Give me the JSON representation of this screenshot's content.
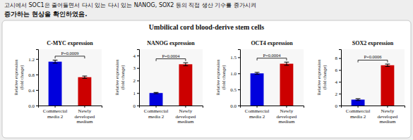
{
  "title": "Umbilical cord blood-derive stem cells",
  "annotations": [
    "고시에서 SOC1은 줄어들면서 다시 있는 다시 있는 NANOG, SOX2 등의 직접 생산 기수를 증가시켜",
    "증가하는 현상을 확인하였음."
  ],
  "chart_data": [
    {
      "type": "bar",
      "title": "C-MYC expression",
      "ylabel": "Relative expression\n(fold change)",
      "categories": [
        "Commercial\nmedia 2",
        "Newly\ndeveloped\nmedium"
      ],
      "values": [
        1.13,
        0.73
      ],
      "errors": [
        0.04,
        0.03
      ],
      "colors": [
        "#0000dd",
        "#cc0000"
      ],
      "ylim": [
        0,
        1.45
      ],
      "yticks": [
        {
          "value": 0,
          "label": "0.0"
        },
        0.4,
        0.8,
        1.2
      ],
      "annotations": [
        "P=0.0009"
      ]
    },
    {
      "type": "bar",
      "title": "NANOG expression",
      "ylabel": "Relative expression\n(fold change)",
      "categories": [
        "Commercial\nmedia 2",
        "Newly\ndeveloped\nmedium"
      ],
      "values": [
        1.0,
        3.3
      ],
      "errors": [
        0.05,
        0.12
      ],
      "colors": [
        "#0000dd",
        "#cc0000"
      ],
      "ylim": [
        0,
        4.5
      ],
      "yticks": [
        0,
        1,
        2,
        3,
        4
      ],
      "annotations": [
        "P=0.0004"
      ]
    },
    {
      "type": "bar",
      "title": "OCT4 expression",
      "ylabel": "Relative expression\n(fold change)",
      "categories": [
        "Commercial\nmedia 2",
        "Newly\ndeveloped\nmedium"
      ],
      "values": [
        1.0,
        1.3
      ],
      "errors": [
        0.03,
        0.05
      ],
      "colors": [
        "#0000dd",
        "#cc0000"
      ],
      "ylim": [
        0,
        1.75
      ],
      "yticks": [
        {
          "value": 0,
          "label": "0.0"
        },
        0.5,
        {
          "value": 1,
          "label": "1.0"
        },
        1.5
      ],
      "annotations": [
        "P=0.0004"
      ]
    },
    {
      "type": "bar",
      "title": "SOX2 expression",
      "ylabel": "Relative expression\n(fold change)",
      "categories": [
        "Commercial\nmedia 2",
        "Newly\ndeveloped\nmedium"
      ],
      "values": [
        1.0,
        6.8
      ],
      "errors": [
        0.15,
        0.2
      ],
      "colors": [
        "#0000dd",
        "#cc0000"
      ],
      "ylim": [
        0,
        9.5
      ],
      "yticks": [
        0,
        2,
        4,
        6,
        8
      ],
      "annotations": [
        "P=0.0006"
      ]
    }
  ]
}
